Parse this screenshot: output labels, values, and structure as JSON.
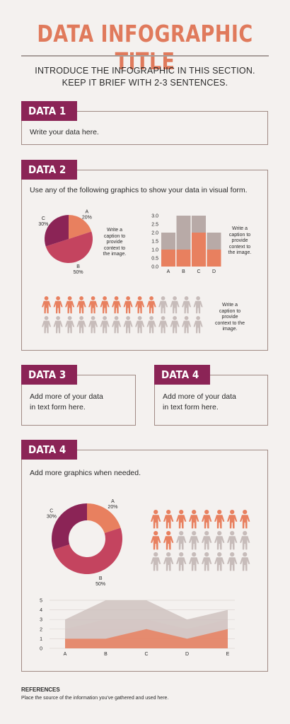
{
  "title": "DATA INFOGRAPHIC TITLE",
  "intro": [
    "INTRODUCE THE INFOGRAPHIC IN THIS SECTION.",
    "KEEP IT BRIEF WITH 2-3 SENTENCES."
  ],
  "sections": {
    "data1": {
      "tag": "DATA 1",
      "text": "Write your data here."
    },
    "data2": {
      "tag": "DATA 2",
      "text": "Use any of the following graphics to show your data in visual form."
    },
    "data3": {
      "tag": "DATA 3",
      "lines": [
        "Add more of your data",
        "in text form here."
      ]
    },
    "data4a": {
      "tag": "DATA 4",
      "lines": [
        "Add more of your data",
        "in text form here."
      ]
    },
    "data4b": {
      "tag": "DATA 4",
      "text": "Add more graphics when needed."
    }
  },
  "captions": {
    "pie": [
      "Write a",
      "caption to",
      "provide",
      "context to",
      "the image."
    ],
    "bar": [
      "Write a",
      "caption to",
      "provide",
      "context to",
      "the image."
    ],
    "people": [
      "Write a",
      "caption to",
      "provide",
      "context to the",
      "image."
    ]
  },
  "colors": {
    "coral": "#e8805f",
    "magenta": "#8b2456",
    "rose": "#c4445f",
    "gray": "#c7bcba",
    "gray_dark": "#b8aaa7"
  },
  "chart_data": [
    {
      "type": "pie",
      "slices": [
        {
          "label": "A",
          "pct_label": "20%",
          "value": 20
        },
        {
          "label": "B",
          "pct_label": "50%",
          "value": 50
        },
        {
          "label": "C",
          "pct_label": "30%",
          "value": 30
        }
      ]
    },
    {
      "type": "bar",
      "categories": [
        "A",
        "B",
        "C",
        "D"
      ],
      "series": [
        {
          "values": [
            1,
            1,
            2,
            1
          ]
        },
        {
          "values": [
            2,
            3,
            3,
            2
          ]
        }
      ],
      "yticks": [
        "0.0",
        "0.5",
        "1.0",
        "1.5",
        "2.0",
        "2.5",
        "3.0"
      ],
      "ylim": [
        0,
        3
      ]
    },
    {
      "type": "pictograph",
      "rows": [
        {
          "filled": 10,
          "total": 14
        },
        {
          "filled": 0,
          "total": 14
        }
      ]
    },
    {
      "type": "donut",
      "slices": [
        {
          "label": "A",
          "pct_label": "20%",
          "value": 20
        },
        {
          "label": "B",
          "pct_label": "50%",
          "value": 50
        },
        {
          "label": "C",
          "pct_label": "30%",
          "value": 30
        }
      ]
    },
    {
      "type": "pictograph",
      "rows": [
        {
          "filled": 8,
          "total": 8
        },
        {
          "filled": 2,
          "total": 8
        },
        {
          "filled": 0,
          "total": 8
        }
      ]
    },
    {
      "type": "area",
      "categories": [
        "A",
        "B",
        "C",
        "D",
        "E"
      ],
      "series": [
        {
          "values": [
            1,
            1,
            2,
            1,
            2
          ]
        },
        {
          "values": [
            2,
            3,
            3,
            2,
            3
          ]
        },
        {
          "values": [
            3,
            5,
            5,
            3,
            4
          ]
        }
      ],
      "yticks": [
        "0",
        "1",
        "2",
        "3",
        "4",
        "5"
      ],
      "ylim": [
        0,
        5
      ]
    }
  ],
  "references": {
    "heading": "REFERENCES",
    "text": "Place the source of the information you've gathered and used here."
  }
}
